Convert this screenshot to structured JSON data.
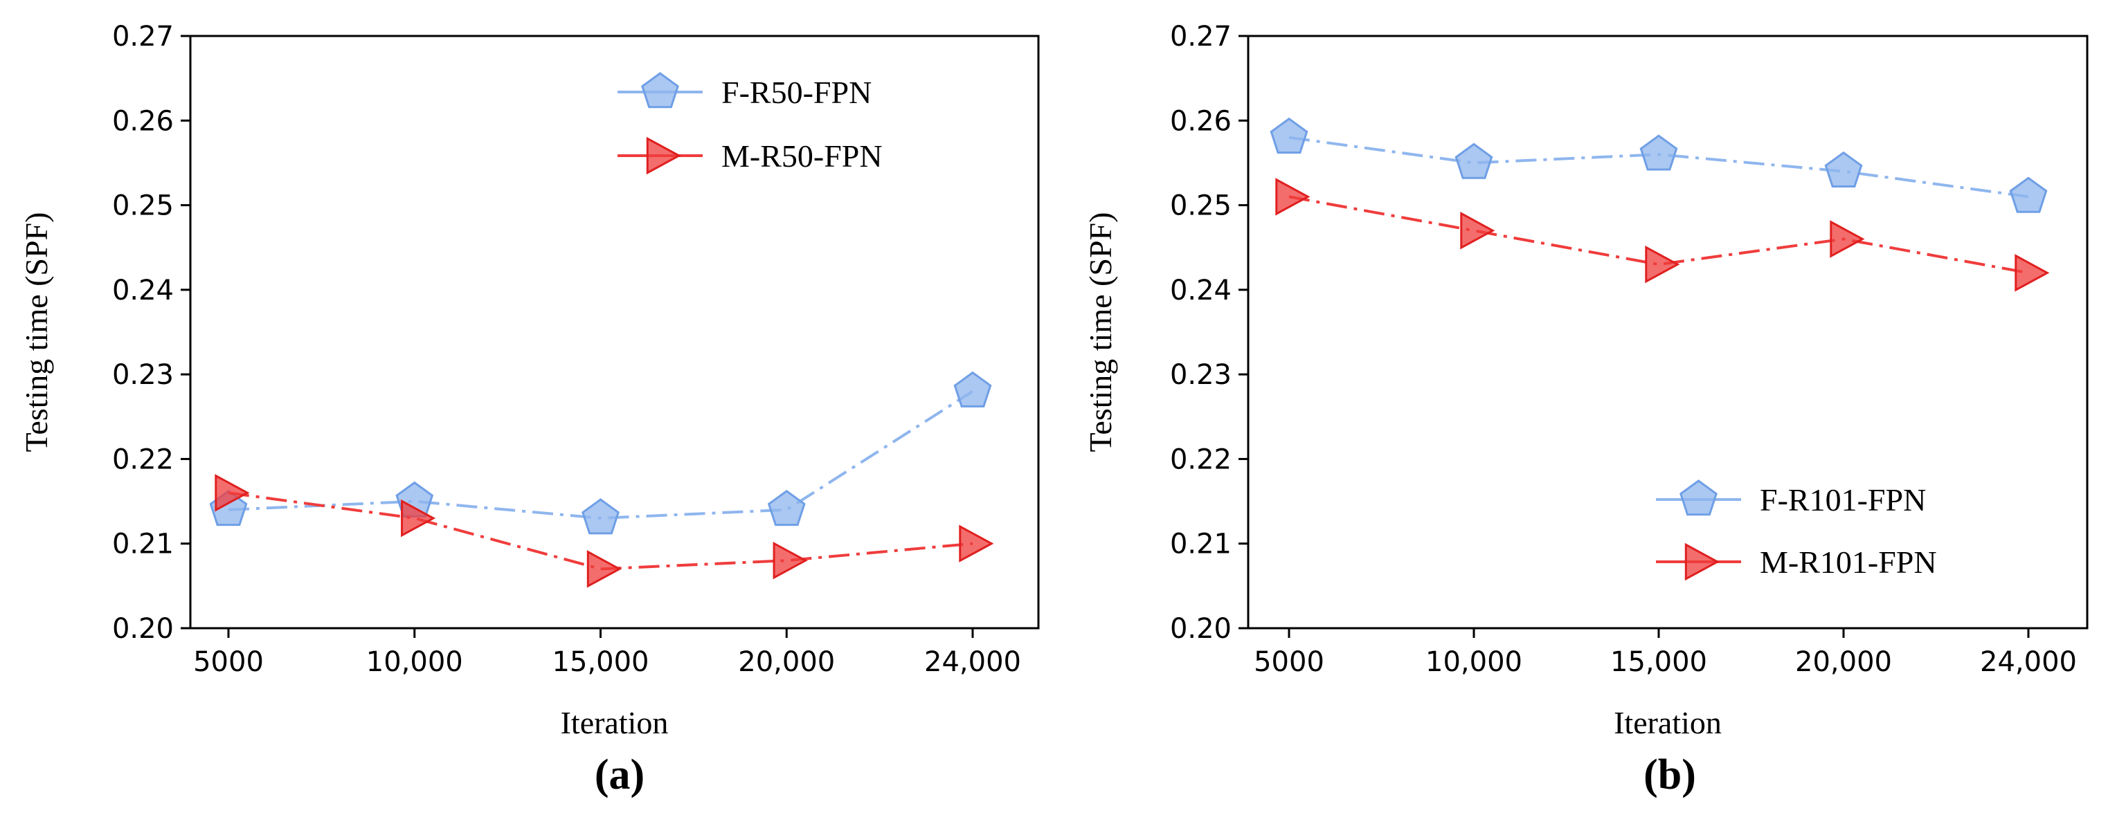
{
  "chart_data": [
    {
      "type": "line",
      "panel_label": "(a)",
      "xlabel": "Iteration",
      "ylabel": "Testing time (SPF)",
      "categories": [
        "5000",
        "10,000",
        "15,000",
        "20,000",
        "24,000"
      ],
      "yticks": [
        "0.20",
        "0.21",
        "0.22",
        "0.23",
        "0.24",
        "0.25",
        "0.26",
        "0.27"
      ],
      "ylim": [
        0.2,
        0.27
      ],
      "grid": false,
      "legend_position": "top-right",
      "series": [
        {
          "name": "F-R50-FPN",
          "marker": "pentagon",
          "line_style": "dash-dot",
          "color": "#8fb6ee",
          "values": [
            0.214,
            0.215,
            0.213,
            0.214,
            0.228
          ]
        },
        {
          "name": "M-R50-FPN",
          "marker": "triangle-right",
          "line_style": "dash-dot",
          "color": "#f03c3c",
          "values": [
            0.216,
            0.213,
            0.207,
            0.208,
            0.21
          ]
        }
      ]
    },
    {
      "type": "line",
      "panel_label": "(b)",
      "xlabel": "Iteration",
      "ylabel": "Testing time (SPF)",
      "categories": [
        "5000",
        "10,000",
        "15,000",
        "20,000",
        "24,000"
      ],
      "yticks": [
        "0.20",
        "0.21",
        "0.22",
        "0.23",
        "0.24",
        "0.25",
        "0.26",
        "0.27"
      ],
      "ylim": [
        0.2,
        0.27
      ],
      "grid": false,
      "legend_position": "bottom-right",
      "series": [
        {
          "name": "F-R101-FPN",
          "marker": "pentagon",
          "line_style": "dash-dot",
          "color": "#8fb6ee",
          "values": [
            0.258,
            0.255,
            0.256,
            0.254,
            0.251
          ]
        },
        {
          "name": "M-R101-FPN",
          "marker": "triangle-right",
          "line_style": "dash-dot",
          "color": "#f03c3c",
          "values": [
            0.251,
            0.247,
            0.243,
            0.246,
            0.242
          ]
        }
      ]
    }
  ]
}
